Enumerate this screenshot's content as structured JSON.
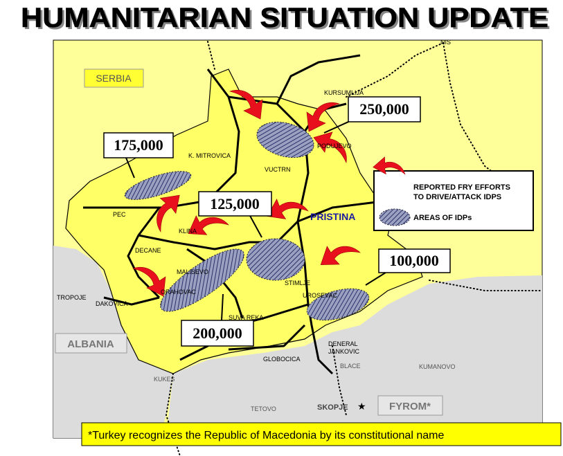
{
  "header": {
    "title": "HUMANITARIAN SITUATION UPDATE"
  },
  "map": {
    "regions": [
      "SERBIA",
      "ALBANIA",
      "FYROM*"
    ],
    "capital": "PRISTINA",
    "places": [
      "NIS",
      "KURSUMLIJA",
      "PODUJEVO",
      "K. MITROVICA",
      "VUCTRN",
      "PEC",
      "KLINA",
      "DECANE",
      "MALISEVO",
      "ORAHOVAC",
      "STIMLJE",
      "UROSEVAC",
      "DAKOVICA",
      "TROPOJE",
      "SUVA REKA",
      "DENERAL",
      "JANKOVIC",
      "BLACE",
      "KUMANOVO",
      "GLOBOCICA",
      "KUKES",
      "TETOVO",
      "SKOPJE"
    ],
    "idp_counts": [
      "250,000",
      "175,000",
      "125,000",
      "100,000",
      "200,000"
    ]
  },
  "legend": {
    "items": [
      {
        "lines": [
          "REPORTED FRY EFFORTS",
          "TO DRIVE/ATTACK IDPS"
        ]
      },
      {
        "lines": [
          "AREAS OF IDPs"
        ]
      }
    ]
  },
  "footnote": "*Turkey recognizes the Republic of Macedonia by its constitutional name"
}
